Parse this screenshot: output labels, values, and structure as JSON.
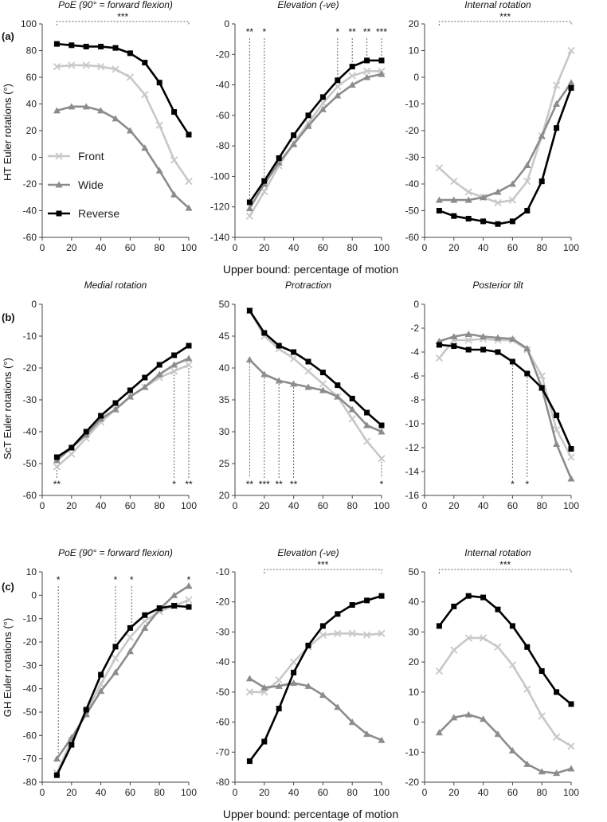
{
  "figure": {
    "row_labels": [
      "(a)",
      "(b)",
      "(c)"
    ],
    "y_labels": [
      "HT Euler rotations (°)",
      "ScT Euler rotations (°)",
      "GH Euler rotations (°)"
    ],
    "x_label": "Upper bound: percentage of motion",
    "legend": [
      {
        "name": "Front",
        "color": "#c8c8c8",
        "marker": "x"
      },
      {
        "name": "Wide",
        "color": "#8c8c8c",
        "marker": "triangle"
      },
      {
        "name": "Reverse",
        "color": "#000000",
        "marker": "square"
      }
    ]
  },
  "chart_data": [
    {
      "type": "line",
      "title": "PoE (90° = forward flexion)",
      "row": 0,
      "col": 0,
      "ylim": [
        -60,
        100
      ],
      "yticks": [
        -60,
        -40,
        -20,
        0,
        20,
        40,
        60,
        80,
        100
      ],
      "xlim": [
        0,
        100
      ],
      "xticks": [
        0,
        20,
        40,
        60,
        80,
        100
      ],
      "x": [
        10,
        20,
        30,
        40,
        50,
        60,
        70,
        80,
        90,
        100
      ],
      "series": [
        {
          "name": "Front",
          "values": [
            68,
            69,
            69,
            68,
            66,
            60,
            47,
            24,
            -2,
            -18
          ]
        },
        {
          "name": "Wide",
          "values": [
            35,
            38,
            38,
            35,
            29,
            20,
            7,
            -10,
            -28,
            -38
          ]
        },
        {
          "name": "Reverse",
          "values": [
            85,
            84,
            83,
            83,
            82,
            78,
            71,
            56,
            34,
            17
          ]
        }
      ],
      "annotations": [
        {
          "text": "***",
          "type": "bracket",
          "x0": 10,
          "x1": 100
        }
      ]
    },
    {
      "type": "line",
      "title": "Elevation (-ve)",
      "row": 0,
      "col": 1,
      "ylim": [
        -140,
        0
      ],
      "yticks": [
        -140,
        -120,
        -100,
        -80,
        -60,
        -40,
        -20,
        0
      ],
      "xlim": [
        0,
        100
      ],
      "xticks": [
        0,
        20,
        40,
        60,
        80,
        100
      ],
      "x": [
        10,
        20,
        30,
        40,
        50,
        60,
        70,
        80,
        90,
        100
      ],
      "series": [
        {
          "name": "Front",
          "values": [
            -126,
            -110,
            -93,
            -78,
            -65,
            -52,
            -41,
            -34,
            -31,
            -31
          ]
        },
        {
          "name": "Wide",
          "values": [
            -121,
            -105,
            -91,
            -79,
            -67,
            -56,
            -47,
            -40,
            -35,
            -33
          ]
        },
        {
          "name": "Reverse",
          "values": [
            -117,
            -103,
            -88,
            -73,
            -60,
            -48,
            -37,
            -28,
            -24,
            -24
          ]
        }
      ],
      "annotations": [
        {
          "text": "**",
          "type": "line",
          "x": 10
        },
        {
          "text": "*",
          "type": "line",
          "x": 20
        },
        {
          "text": "*",
          "type": "line",
          "x": 70
        },
        {
          "text": "**",
          "type": "line",
          "x": 80
        },
        {
          "text": "**",
          "type": "line",
          "x": 90
        },
        {
          "text": "***",
          "type": "line",
          "x": 100
        }
      ]
    },
    {
      "type": "line",
      "title": "Internal rotation",
      "row": 0,
      "col": 2,
      "ylim": [
        -60,
        20
      ],
      "yticks": [
        -60,
        -50,
        -40,
        -30,
        -20,
        -10,
        0,
        10,
        20
      ],
      "xlim": [
        0,
        100
      ],
      "xticks": [
        0,
        20,
        40,
        60,
        80,
        100
      ],
      "x": [
        10,
        20,
        30,
        40,
        50,
        60,
        70,
        80,
        90,
        100
      ],
      "series": [
        {
          "name": "Front",
          "values": [
            -34,
            -39,
            -43,
            -45,
            -47,
            -46,
            -39,
            -22,
            -3,
            10
          ]
        },
        {
          "name": "Wide",
          "values": [
            -46,
            -46,
            -46,
            -45,
            -43,
            -40,
            -33,
            -22,
            -10,
            -2
          ]
        },
        {
          "name": "Reverse",
          "values": [
            -50,
            -52,
            -53,
            -54,
            -55,
            -54,
            -50,
            -39,
            -19,
            -4
          ]
        }
      ],
      "annotations": [
        {
          "text": "***",
          "type": "bracket",
          "x0": 10,
          "x1": 100
        }
      ]
    },
    {
      "type": "line",
      "title": "Medial rotation",
      "row": 1,
      "col": 0,
      "ylim": [
        -60,
        0
      ],
      "yticks": [
        -60,
        -50,
        -40,
        -30,
        -20,
        -10,
        0
      ],
      "xlim": [
        0,
        100
      ],
      "xticks": [
        0,
        20,
        40,
        60,
        80,
        100
      ],
      "x": [
        10,
        20,
        30,
        40,
        50,
        60,
        70,
        80,
        90,
        100
      ],
      "series": [
        {
          "name": "Front",
          "values": [
            -51,
            -47,
            -42,
            -37,
            -33,
            -29,
            -26,
            -23,
            -21,
            -19
          ]
        },
        {
          "name": "Wide",
          "values": [
            -49,
            -45,
            -41,
            -36,
            -33,
            -29,
            -26,
            -22,
            -19,
            -17
          ]
        },
        {
          "name": "Reverse",
          "values": [
            -48,
            -45,
            -40,
            -35,
            -31,
            -27,
            -23,
            -19,
            -16,
            -13
          ]
        }
      ],
      "annotations": [
        {
          "text": "**",
          "type": "line",
          "x": 10
        },
        {
          "text": "*",
          "type": "line",
          "x": 90
        },
        {
          "text": "**",
          "type": "line",
          "x": 100
        }
      ]
    },
    {
      "type": "line",
      "title": "Protraction",
      "row": 1,
      "col": 1,
      "ylim": [
        20,
        50
      ],
      "yticks": [
        20,
        25,
        30,
        35,
        40,
        45,
        50
      ],
      "xlim": [
        0,
        100
      ],
      "xticks": [
        0,
        20,
        40,
        60,
        80,
        100
      ],
      "x": [
        10,
        20,
        30,
        40,
        50,
        60,
        70,
        80,
        90,
        100
      ],
      "series": [
        {
          "name": "Front",
          "values": [
            49,
            45,
            43,
            41.5,
            39.5,
            37.5,
            35.5,
            32,
            28.5,
            25.8
          ]
        },
        {
          "name": "Wide",
          "values": [
            41.3,
            39,
            38,
            37.5,
            37,
            36.5,
            35.5,
            33.5,
            31,
            30
          ]
        },
        {
          "name": "Reverse",
          "values": [
            49,
            45.5,
            43.5,
            42.5,
            41,
            39.3,
            37.3,
            35.2,
            33,
            31
          ]
        }
      ],
      "annotations": [
        {
          "text": "**",
          "type": "line",
          "x": 10
        },
        {
          "text": "***",
          "type": "line",
          "x": 20
        },
        {
          "text": "**",
          "type": "line",
          "x": 30
        },
        {
          "text": "**",
          "type": "line",
          "x": 40
        },
        {
          "text": "*",
          "type": "line",
          "x": 100
        }
      ]
    },
    {
      "type": "line",
      "title": "Posterior tilt",
      "row": 1,
      "col": 2,
      "ylim": [
        -16,
        0
      ],
      "yticks": [
        -16,
        -14,
        -12,
        -10,
        -8,
        -6,
        -4,
        -2,
        0
      ],
      "xlim": [
        0,
        100
      ],
      "xticks": [
        0,
        20,
        40,
        60,
        80,
        100
      ],
      "x": [
        10,
        20,
        30,
        40,
        50,
        60,
        70,
        80,
        90,
        100
      ],
      "series": [
        {
          "name": "Front",
          "values": [
            -4.5,
            -3,
            -3,
            -2.9,
            -3,
            -3,
            -3.8,
            -6,
            -10.5,
            -12.8
          ]
        },
        {
          "name": "Wide",
          "values": [
            -3.1,
            -2.7,
            -2.5,
            -2.7,
            -2.8,
            -2.9,
            -3.7,
            -7,
            -11.7,
            -14.6
          ]
        },
        {
          "name": "Reverse",
          "values": [
            -3.4,
            -3.5,
            -3.8,
            -3.8,
            -4,
            -4.8,
            -5.8,
            -7,
            -9.3,
            -12.1
          ]
        }
      ],
      "annotations": [
        {
          "text": "*",
          "type": "line",
          "x": 60
        },
        {
          "text": "*",
          "type": "line",
          "x": 70
        }
      ]
    },
    {
      "type": "line",
      "title": "PoE (90° = forward flexion)",
      "row": 2,
      "col": 0,
      "ylim": [
        -80,
        10
      ],
      "yticks": [
        -80,
        -70,
        -60,
        -50,
        -40,
        -30,
        -20,
        -10,
        0,
        10
      ],
      "xlim": [
        0,
        100
      ],
      "xticks": [
        0,
        20,
        40,
        60,
        80,
        100
      ],
      "x": [
        10,
        20,
        30,
        40,
        50,
        60,
        70,
        80,
        90,
        100
      ],
      "series": [
        {
          "name": "Front",
          "values": [
            -76,
            -62,
            -50,
            -38,
            -27,
            -18,
            -11,
            -7,
            -4.5,
            -2
          ]
        },
        {
          "name": "Wide",
          "values": [
            -70,
            -61,
            -51,
            -41,
            -33,
            -24,
            -14,
            -6,
            0,
            4
          ]
        },
        {
          "name": "Reverse",
          "values": [
            -77,
            -64,
            -49,
            -34,
            -22,
            -14,
            -8.5,
            -5.5,
            -4.5,
            -5
          ]
        }
      ],
      "annotations": [
        {
          "text": "*",
          "type": "line",
          "x": 11
        },
        {
          "text": "*",
          "type": "line",
          "x": 50
        },
        {
          "text": "*",
          "type": "line",
          "x": 61
        },
        {
          "text": "*",
          "type": "line",
          "x": 100
        }
      ]
    },
    {
      "type": "line",
      "title": "Elevation (-ve)",
      "row": 2,
      "col": 1,
      "ylim": [
        -80,
        -10
      ],
      "yticks": [
        -80,
        -70,
        -60,
        -50,
        -40,
        -30,
        -20,
        -10
      ],
      "xlim": [
        0,
        100
      ],
      "xticks": [
        0,
        20,
        40,
        60,
        80,
        100
      ],
      "x": [
        10,
        20,
        30,
        40,
        50,
        60,
        70,
        80,
        90,
        100
      ],
      "series": [
        {
          "name": "Front",
          "values": [
            -50,
            -50,
            -46,
            -40,
            -35,
            -31,
            -30.5,
            -30.5,
            -31,
            -30.5
          ]
        },
        {
          "name": "Wide",
          "values": [
            -45.5,
            -48.5,
            -48,
            -47,
            -48,
            -51,
            -55,
            -60,
            -64,
            -66
          ]
        },
        {
          "name": "Reverse",
          "values": [
            -73,
            -66.5,
            -55.5,
            -43.5,
            -34.5,
            -28,
            -24,
            -21,
            -19.5,
            -18
          ]
        }
      ],
      "annotations": [
        {
          "text": "***",
          "type": "bracket",
          "x0": 20,
          "x1": 100
        }
      ]
    },
    {
      "type": "line",
      "title": "Internal rotation",
      "row": 2,
      "col": 2,
      "ylim": [
        -20,
        50
      ],
      "yticks": [
        -20,
        -10,
        0,
        10,
        20,
        30,
        40,
        50
      ],
      "xlim": [
        0,
        100
      ],
      "xticks": [
        0,
        20,
        40,
        60,
        80,
        100
      ],
      "x": [
        10,
        20,
        30,
        40,
        50,
        60,
        70,
        80,
        90,
        100
      ],
      "series": [
        {
          "name": "Front",
          "values": [
            17,
            24,
            28,
            28,
            25,
            19,
            11,
            2,
            -5,
            -8
          ]
        },
        {
          "name": "Wide",
          "values": [
            -3.5,
            1.5,
            2.5,
            1,
            -4,
            -9.5,
            -14,
            -16.5,
            -17,
            -15.5
          ]
        },
        {
          "name": "Reverse",
          "values": [
            32,
            38.5,
            42,
            41.5,
            37.5,
            32,
            25,
            17,
            10,
            6
          ]
        }
      ],
      "annotations": [
        {
          "text": "***",
          "type": "bracket",
          "x0": 10,
          "x1": 100
        }
      ]
    }
  ]
}
